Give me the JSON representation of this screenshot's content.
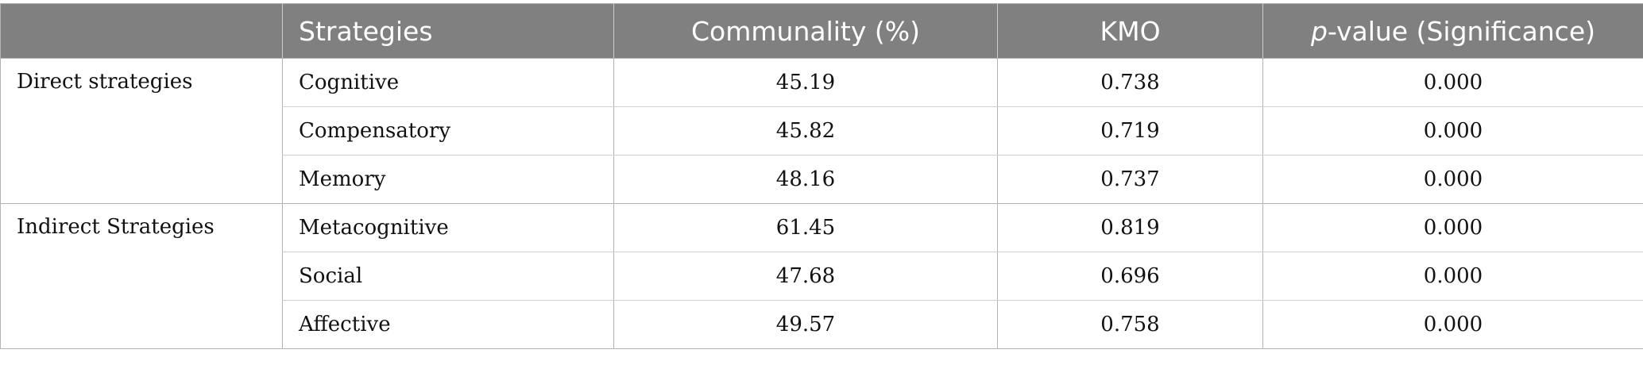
{
  "table": {
    "headers": {
      "group": "",
      "strategies": "Strategies",
      "communality": "Communality (%)",
      "kmo": "KMO",
      "p_italic": "p",
      "p_rest": "-value (Significance)"
    },
    "groups": [
      {
        "label": "Direct strategies",
        "rows": [
          {
            "strategy": "Cognitive",
            "communality": "45.19",
            "kmo": "0.738",
            "p": "0.000"
          },
          {
            "strategy": "Compensatory",
            "communality": "45.82",
            "kmo": "0.719",
            "p": "0.000"
          },
          {
            "strategy": "Memory",
            "communality": "48.16",
            "kmo": "0.737",
            "p": "0.000"
          }
        ]
      },
      {
        "label": "Indirect Strategies",
        "rows": [
          {
            "strategy": "Metacognitive",
            "communality": "61.45",
            "kmo": "0.819",
            "p": "0.000"
          },
          {
            "strategy": "Social",
            "communality": "47.68",
            "kmo": "0.696",
            "p": "0.000"
          },
          {
            "strategy": "Affective",
            "communality": "49.57",
            "kmo": "0.758",
            "p": "0.000"
          }
        ]
      }
    ]
  }
}
